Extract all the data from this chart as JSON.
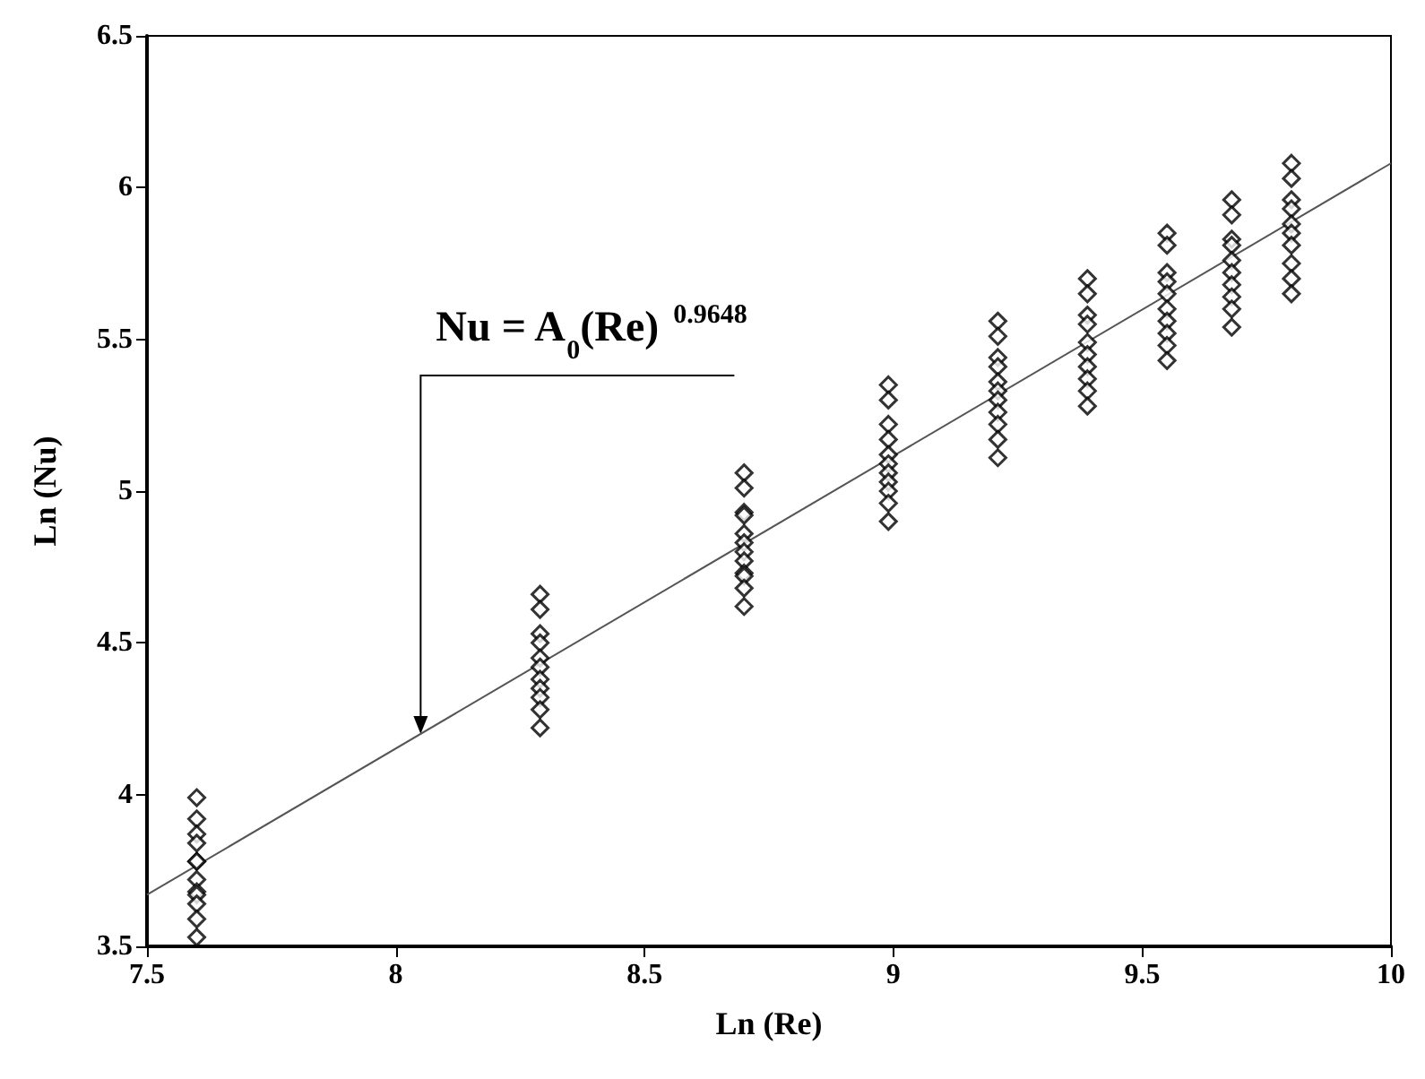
{
  "chart_data": {
    "type": "scatter",
    "xlabel": "Ln (Re)",
    "ylabel": "Ln (Nu)",
    "xlim": [
      7.5,
      10
    ],
    "xticks": [
      7.5,
      8,
      8.5,
      9,
      9.5,
      10
    ],
    "ylim": [
      3.5,
      6.5
    ],
    "yticks": [
      3.5,
      4,
      4.5,
      5,
      5.5,
      6,
      6.5
    ],
    "grid": false,
    "marker": "diamond",
    "annotations": [
      {
        "text": "Nu = A$_{0}$(Re)$^{0.9648}$",
        "x": 8.05,
        "y": 4.2
      }
    ],
    "series": [
      {
        "color": "#000000",
        "x": [
          7.6,
          7.6,
          7.6,
          7.6,
          7.6,
          7.6,
          7.6,
          7.6,
          7.6,
          7.6,
          7.6,
          7.6,
          8.29,
          8.29,
          8.29,
          8.29,
          8.29,
          8.29,
          8.29,
          8.29,
          8.29,
          8.29,
          8.29,
          8.7,
          8.7,
          8.7,
          8.7,
          8.7,
          8.7,
          8.7,
          8.7,
          8.7,
          8.7,
          8.7,
          8.7,
          8.99,
          8.99,
          8.99,
          8.99,
          8.99,
          8.99,
          8.99,
          8.99,
          8.99,
          8.99,
          8.99,
          9.21,
          9.21,
          9.21,
          9.21,
          9.21,
          9.21,
          9.21,
          9.21,
          9.21,
          9.21,
          9.21,
          9.39,
          9.39,
          9.39,
          9.39,
          9.39,
          9.39,
          9.39,
          9.39,
          9.39,
          9.39,
          9.55,
          9.55,
          9.55,
          9.55,
          9.55,
          9.55,
          9.55,
          9.55,
          9.55,
          9.55,
          9.68,
          9.68,
          9.68,
          9.68,
          9.68,
          9.68,
          9.68,
          9.68,
          9.68,
          9.68,
          9.8,
          9.8,
          9.8,
          9.8,
          9.8,
          9.8,
          9.8,
          9.8,
          9.8,
          9.8
        ],
        "values": [
          3.99,
          3.92,
          3.87,
          3.84,
          3.78,
          3.78,
          3.72,
          3.68,
          3.67,
          3.64,
          3.59,
          3.53,
          4.66,
          4.61,
          4.53,
          4.5,
          4.45,
          4.42,
          4.38,
          4.35,
          4.32,
          4.28,
          4.22,
          5.06,
          5.01,
          4.93,
          4.92,
          4.86,
          4.83,
          4.8,
          4.77,
          4.73,
          4.72,
          4.68,
          4.62,
          5.35,
          5.3,
          5.22,
          5.17,
          5.12,
          5.09,
          5.06,
          5.03,
          5.0,
          4.96,
          4.9,
          5.56,
          5.51,
          5.44,
          5.41,
          5.36,
          5.33,
          5.3,
          5.26,
          5.22,
          5.17,
          5.11,
          5.7,
          5.65,
          5.58,
          5.55,
          5.49,
          5.45,
          5.41,
          5.37,
          5.33,
          5.28,
          5.85,
          5.81,
          5.72,
          5.69,
          5.65,
          5.6,
          5.56,
          5.52,
          5.48,
          5.43,
          5.96,
          5.91,
          5.83,
          5.81,
          5.76,
          5.72,
          5.68,
          5.64,
          5.6,
          5.54,
          6.08,
          6.03,
          5.96,
          5.93,
          5.88,
          5.85,
          5.81,
          5.75,
          5.7,
          5.65
        ]
      },
      {
        "type": "line",
        "color": "#555555",
        "marker": "none",
        "x": [
          7.5,
          10
        ],
        "values": [
          3.67,
          6.08
        ]
      }
    ]
  }
}
